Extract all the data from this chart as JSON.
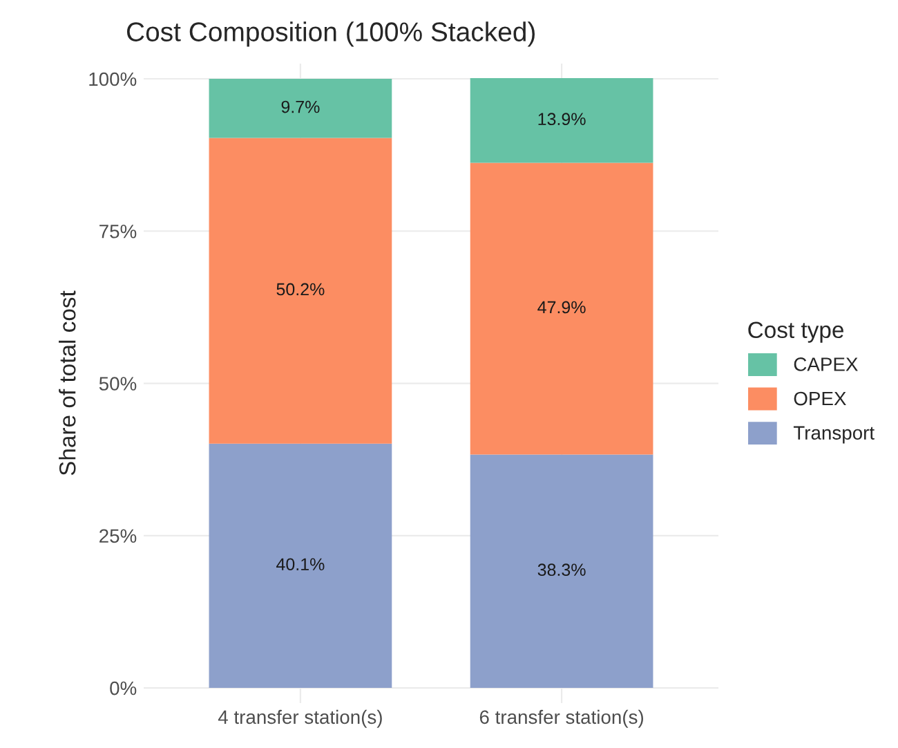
{
  "chart_data": {
    "type": "bar",
    "title": "Cost Composition (100% Stacked)",
    "ylabel": "Share of total cost",
    "legend_title": "Cost type",
    "categories": [
      "4 transfer station(s)",
      "6 transfer station(s)"
    ],
    "stacked": true,
    "series": [
      {
        "name": "Transport",
        "color": "#8da0cb",
        "values": [
          40.1,
          38.3
        ],
        "value_labels": [
          "40.1%",
          "38.3%"
        ]
      },
      {
        "name": "OPEX",
        "color": "#fc8d62",
        "values": [
          50.2,
          47.9
        ],
        "value_labels": [
          "50.2%",
          "47.9%"
        ]
      },
      {
        "name": "CAPEX",
        "color": "#66c2a5",
        "values": [
          9.7,
          13.9
        ],
        "value_labels": [
          "9.7%",
          "13.9%"
        ]
      }
    ],
    "ylim": [
      -2.5,
      102.5
    ],
    "yticks": [
      {
        "value": 0,
        "label": "0%"
      },
      {
        "value": 25,
        "label": "25%"
      },
      {
        "value": 50,
        "label": "50%"
      },
      {
        "value": 75,
        "label": "75%"
      },
      {
        "value": 100,
        "label": "100%"
      }
    ],
    "grid": true,
    "legend": "right"
  }
}
